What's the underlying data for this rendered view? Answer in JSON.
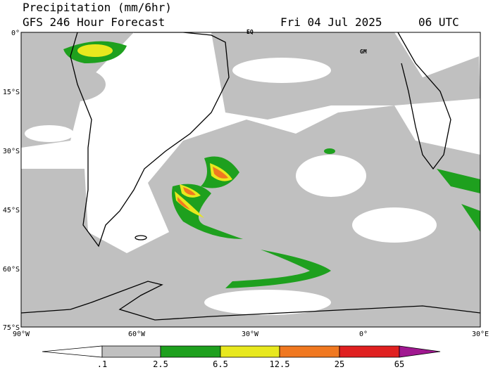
{
  "header": {
    "title": "Precipitation (mm/6hr)",
    "subtitle": "GFS 246 Hour Forecast",
    "date": "Fri 04 Jul 2025",
    "time": "06 UTC"
  },
  "map": {
    "lat_labels": [
      "0°",
      "15°S",
      "30°S",
      "45°S",
      "60°S",
      "75°S"
    ],
    "lon_labels": [
      "90°W",
      "60°W",
      "30°W",
      "0°",
      "30°E"
    ],
    "annotations": [
      "EQ",
      "GM"
    ]
  },
  "legend": {
    "labels": [
      ".1",
      "2.5",
      "6.5",
      "12.5",
      "25",
      "65"
    ]
  }
}
